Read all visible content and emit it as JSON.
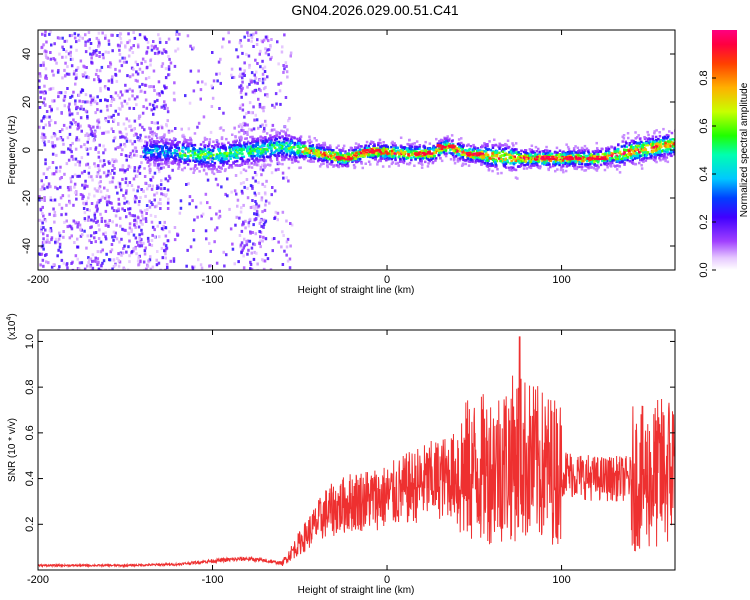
{
  "title": "GN04.2026.029.00.51.C41",
  "chart_data": [
    {
      "type": "heatmap",
      "xlabel": "Height of straight line (km)",
      "ylabel": "Frequency (Hz)",
      "xlim": [
        -200,
        165
      ],
      "ylim": [
        -50,
        50
      ],
      "xticks": [
        -200,
        -100,
        0,
        100
      ],
      "yticks": [
        -40,
        -20,
        0,
        20,
        40
      ],
      "colorbar": {
        "label": "Normalized spectral amplitude",
        "range": [
          0,
          1
        ],
        "ticks": [
          "0.0",
          "0.2",
          "0.4",
          "0.6",
          "0.8"
        ]
      },
      "centerline": [
        {
          "x": -130,
          "y": 0
        },
        {
          "x": -100,
          "y": -2
        },
        {
          "x": -60,
          "y": 2
        },
        {
          "x": -45,
          "y": 0
        },
        {
          "x": -25,
          "y": -3
        },
        {
          "x": -10,
          "y": 0
        },
        {
          "x": 10,
          "y": -1
        },
        {
          "x": 25,
          "y": -1
        },
        {
          "x": 33,
          "y": 2
        },
        {
          "x": 45,
          "y": -1
        },
        {
          "x": 60,
          "y": -2
        },
        {
          "x": 75,
          "y": -3
        },
        {
          "x": 95,
          "y": -3
        },
        {
          "x": 120,
          "y": -3
        },
        {
          "x": 140,
          "y": 0
        },
        {
          "x": 165,
          "y": 3
        }
      ]
    },
    {
      "type": "line",
      "xlabel": "Height of straight line (km)",
      "ylabel": "SNR (10 * v/v)",
      "multiplier": "(x10",
      "multiplier_exp": "4",
      "multiplier_close": ")",
      "xlim": [
        -200,
        165
      ],
      "ylim": [
        0,
        1.05
      ],
      "xticks": [
        -200,
        -100,
        0,
        100
      ],
      "yticks": [
        "0.2",
        "0.4",
        "0.6",
        "0.8",
        "1.0"
      ],
      "color": "#ee3030",
      "envelope": [
        {
          "x": -200,
          "y": 0.02
        },
        {
          "x": -150,
          "y": 0.02
        },
        {
          "x": -120,
          "y": 0.025
        },
        {
          "x": -100,
          "y": 0.04
        },
        {
          "x": -80,
          "y": 0.05
        },
        {
          "x": -60,
          "y": 0.03
        },
        {
          "x": -50,
          "y": 0.12
        },
        {
          "x": -35,
          "y": 0.25
        },
        {
          "x": -20,
          "y": 0.3
        },
        {
          "x": 0,
          "y": 0.32
        },
        {
          "x": 20,
          "y": 0.38
        },
        {
          "x": 40,
          "y": 0.42
        },
        {
          "x": 60,
          "y": 0.45
        },
        {
          "x": 75,
          "y": 0.5
        },
        {
          "x": 90,
          "y": 0.45
        },
        {
          "x": 105,
          "y": 0.42
        },
        {
          "x": 120,
          "y": 0.4
        },
        {
          "x": 135,
          "y": 0.4
        },
        {
          "x": 150,
          "y": 0.4
        },
        {
          "x": 165,
          "y": 0.45
        }
      ],
      "peak": {
        "x": 76,
        "y": 1.02
      }
    }
  ]
}
